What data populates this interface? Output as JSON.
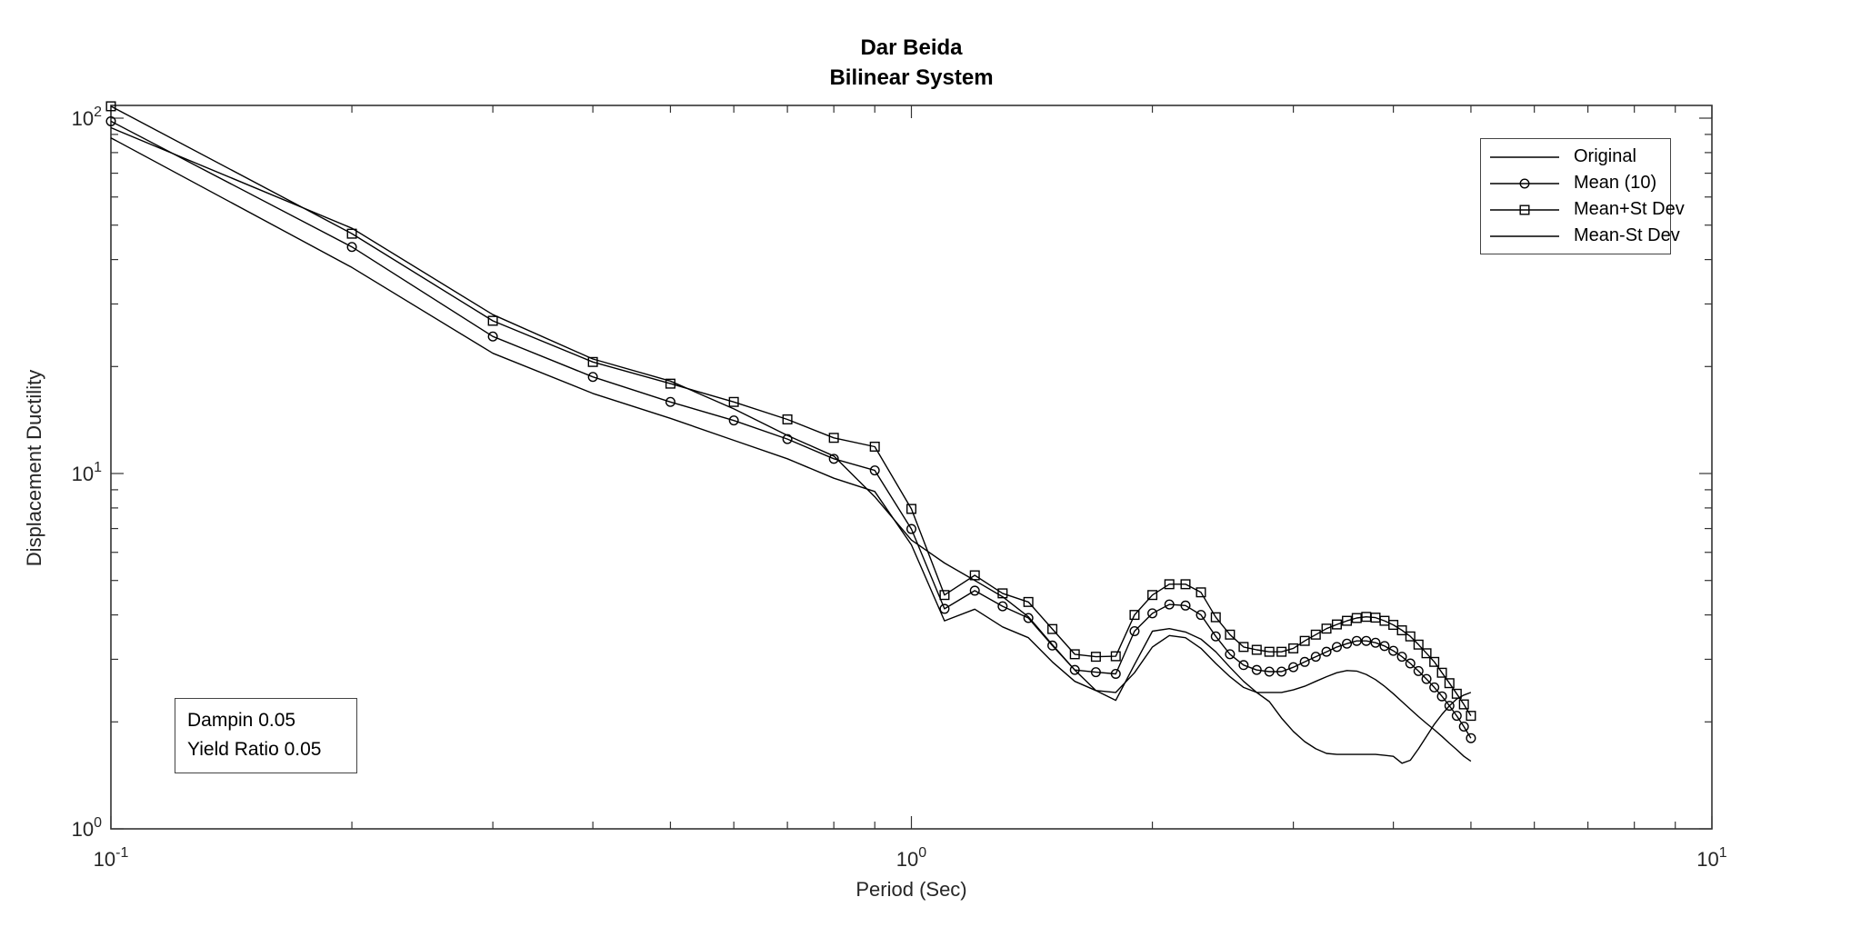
{
  "figure": {
    "kind": "matlab-style line plot"
  },
  "chart_data": {
    "type": "line",
    "title_lines": [
      "Dar Beida",
      "Bilinear System"
    ],
    "xlabel": "Period (Sec)",
    "ylabel": "Displacement Ductility",
    "x_scale": "log",
    "y_scale": "log",
    "xlim": [
      0.1,
      10
    ],
    "ylim": [
      1,
      108.6
    ],
    "grid": false,
    "legend_position": "upper right",
    "annotation": [
      "Dampin 0.05",
      "Yield Ratio 0.05"
    ],
    "x_ticks": [
      {
        "v": 0.1,
        "base": "10",
        "exp": "-1"
      },
      {
        "v": 1,
        "base": "10",
        "exp": "0"
      },
      {
        "v": 10,
        "base": "10",
        "exp": "1"
      }
    ],
    "y_ticks": [
      {
        "v": 1,
        "base": "10",
        "exp": "0"
      },
      {
        "v": 10,
        "base": "10",
        "exp": "1"
      },
      {
        "v": 100,
        "base": "10",
        "exp": "2"
      }
    ],
    "x": [
      0.1,
      0.2,
      0.3,
      0.4,
      0.5,
      0.6,
      0.7,
      0.8,
      0.9,
      1.0,
      1.1,
      1.2,
      1.3,
      1.4,
      1.5,
      1.6,
      1.7,
      1.8,
      1.9,
      2.0,
      2.1,
      2.2,
      2.3,
      2.4,
      2.5,
      2.6,
      2.7,
      2.8,
      2.9,
      3.0,
      3.1,
      3.2,
      3.3,
      3.4,
      3.5,
      3.6,
      3.7,
      3.8,
      3.9,
      4.0,
      4.1,
      4.2,
      4.3,
      4.4,
      4.5,
      4.6,
      4.7,
      4.8,
      4.9,
      5.0
    ],
    "series": [
      {
        "name": "Original",
        "marker": "none",
        "color": "#000000",
        "values": [
          94,
          49,
          28,
          21,
          18.2,
          15.2,
          12.8,
          11.2,
          8.6,
          6.5,
          5.6,
          5.0,
          4.5,
          3.95,
          3.3,
          2.8,
          2.45,
          2.3,
          2.9,
          3.6,
          3.66,
          3.58,
          3.42,
          3.15,
          2.85,
          2.6,
          2.42,
          2.28,
          2.05,
          1.88,
          1.76,
          1.68,
          1.63,
          1.62,
          1.62,
          1.62,
          1.62,
          1.62,
          1.61,
          1.6,
          1.53,
          1.56,
          1.68,
          1.82,
          1.97,
          2.1,
          2.22,
          2.32,
          2.38,
          2.42
        ]
      },
      {
        "name": "Mean (10)",
        "marker": "circle",
        "color": "#000000",
        "values": [
          98,
          43.4,
          24.3,
          18.7,
          15.9,
          14.1,
          12.5,
          11.0,
          10.2,
          6.98,
          4.16,
          4.68,
          4.23,
          3.92,
          3.28,
          2.8,
          2.76,
          2.73,
          3.6,
          4.04,
          4.28,
          4.25,
          4.0,
          3.48,
          3.1,
          2.89,
          2.8,
          2.77,
          2.77,
          2.85,
          2.95,
          3.05,
          3.15,
          3.25,
          3.32,
          3.38,
          3.38,
          3.34,
          3.27,
          3.17,
          3.05,
          2.92,
          2.78,
          2.64,
          2.5,
          2.36,
          2.22,
          2.08,
          1.94,
          1.8
        ]
      },
      {
        "name": "Mean+St Dev",
        "marker": "square",
        "color": "#000000",
        "values": [
          108,
          47.3,
          26.9,
          20.6,
          17.9,
          15.9,
          14.2,
          12.6,
          11.9,
          7.95,
          4.55,
          5.17,
          4.6,
          4.35,
          3.65,
          3.1,
          3.05,
          3.06,
          4.0,
          4.55,
          4.88,
          4.88,
          4.63,
          3.94,
          3.52,
          3.25,
          3.19,
          3.15,
          3.15,
          3.22,
          3.38,
          3.52,
          3.66,
          3.76,
          3.85,
          3.92,
          3.95,
          3.93,
          3.85,
          3.75,
          3.62,
          3.48,
          3.3,
          3.12,
          2.95,
          2.75,
          2.57,
          2.4,
          2.24,
          2.08
        ]
      },
      {
        "name": "Mean-St Dev",
        "marker": "none",
        "color": "#000000",
        "values": [
          88,
          38,
          21.8,
          16.8,
          14.3,
          12.4,
          11.0,
          9.7,
          8.9,
          6.3,
          3.85,
          4.15,
          3.7,
          3.45,
          2.95,
          2.6,
          2.45,
          2.42,
          2.75,
          3.25,
          3.5,
          3.45,
          3.22,
          2.92,
          2.68,
          2.5,
          2.42,
          2.42,
          2.42,
          2.46,
          2.52,
          2.6,
          2.68,
          2.75,
          2.79,
          2.78,
          2.72,
          2.63,
          2.52,
          2.4,
          2.28,
          2.17,
          2.07,
          1.98,
          1.9,
          1.82,
          1.74,
          1.67,
          1.6,
          1.55
        ]
      }
    ]
  }
}
